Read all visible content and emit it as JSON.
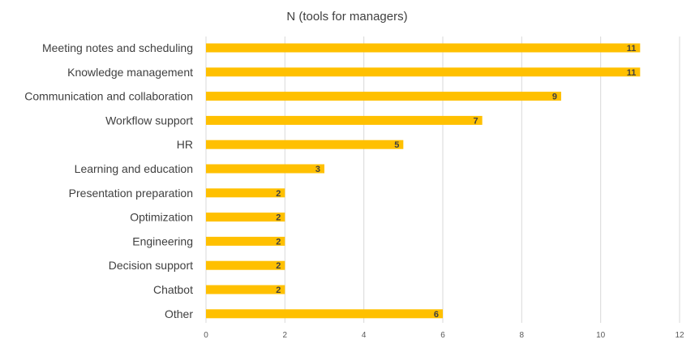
{
  "chart_data": {
    "type": "bar",
    "orientation": "horizontal",
    "title": "N (tools for managers)",
    "categories": [
      "Meeting notes and scheduling",
      "Knowledge management",
      "Communication and collaboration",
      "Workflow support",
      "HR",
      "Learning and education",
      "Presentation preparation",
      "Optimization",
      "Engineering",
      "Decision support",
      "Chatbot",
      "Other"
    ],
    "values": [
      11,
      11,
      9,
      7,
      5,
      3,
      2,
      2,
      2,
      2,
      2,
      6
    ],
    "xlim": [
      0,
      12
    ],
    "xticks": [
      0,
      2,
      4,
      6,
      8,
      10,
      12
    ],
    "grid": true,
    "legend": "none",
    "bar_color": "#FFC000"
  }
}
